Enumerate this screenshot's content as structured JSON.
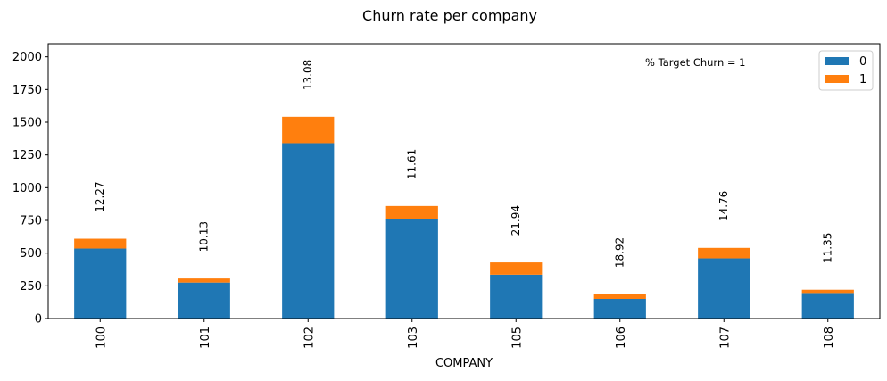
{
  "chart_data": {
    "type": "bar",
    "stacked": true,
    "title": "Churn rate per company",
    "xlabel": "COMPANY",
    "ylabel": "",
    "categories": [
      "100",
      "101",
      "102",
      "103",
      "105",
      "106",
      "107",
      "108"
    ],
    "series": [
      {
        "name": "0",
        "color": "#1f77b4",
        "values": [
          535,
          275,
          1340,
          760,
          335,
          150,
          460,
          195
        ]
      },
      {
        "name": "1",
        "color": "#ff7f0e",
        "values": [
          75,
          31,
          202,
          100,
          94,
          35,
          80,
          25
        ]
      }
    ],
    "bar_annotations": [
      "12.27",
      "10.13",
      "13.08",
      "11.61",
      "21.94",
      "18.92",
      "14.76",
      "11.35"
    ],
    "annotation_text": "% Target Churn = 1",
    "ylim": [
      0,
      2100
    ],
    "yticks": [
      0,
      250,
      500,
      750,
      1000,
      1250,
      1500,
      1750,
      2000
    ],
    "grid": false,
    "legend": {
      "placement": "top-right",
      "entries": [
        "0",
        "1"
      ]
    }
  }
}
